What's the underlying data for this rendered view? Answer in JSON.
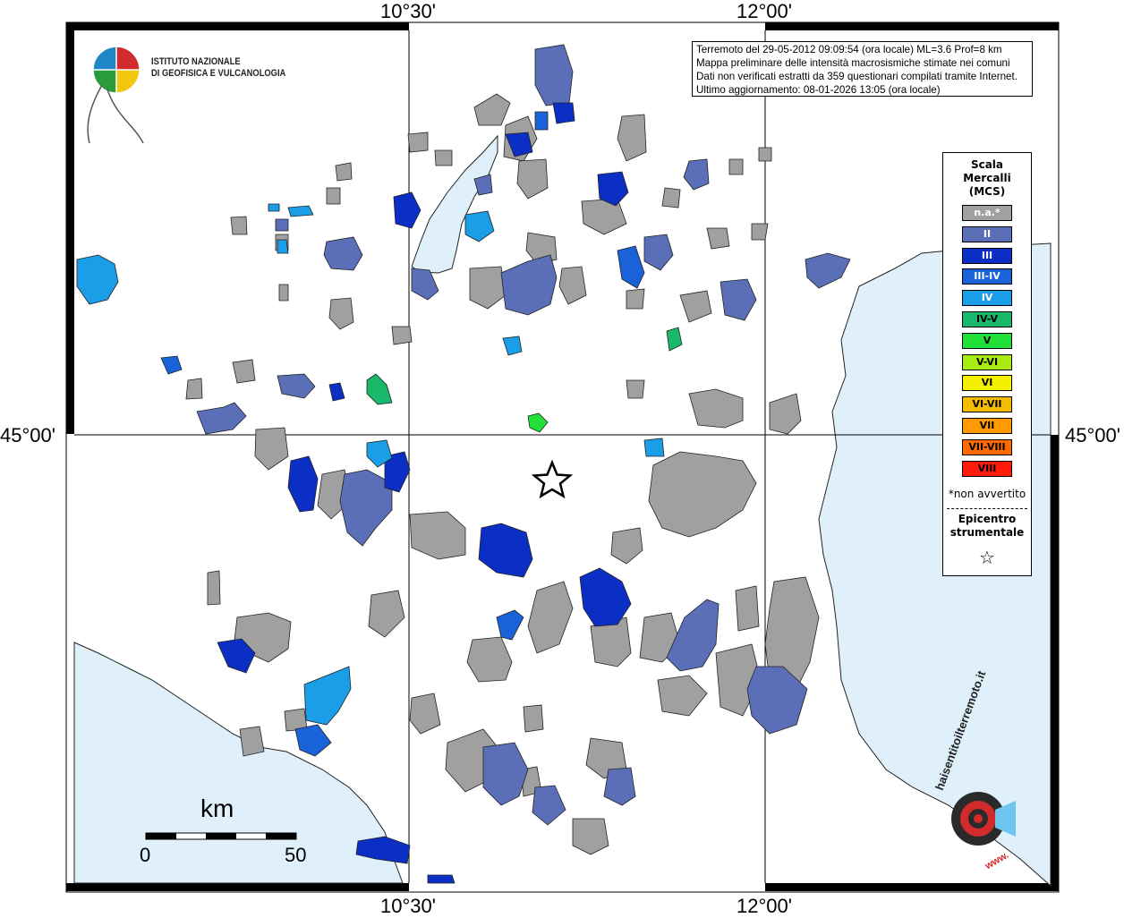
{
  "grid_labels": {
    "top_left": "10°30'",
    "top_right": "12°00'",
    "bottom_left": "10°30'",
    "bottom_right": "12°00'",
    "left_lat": "45°00'",
    "right_lat": "45°00'"
  },
  "institute_logo": {
    "line1": "ISTITUTO NAZIONALE",
    "line2": "DI GEOFISICA E VULCANOLOGIA"
  },
  "info_box": {
    "line1": "Terremoto del 29-05-2012 09:09:54 (ora locale) ML=3.6 Prof=8 km",
    "line2": "Mappa preliminare delle intensità macrosismiche stimate nei comuni",
    "line3": "Dati non verificati estratti da 359 questionari compilati tramite Internet.",
    "line4": "Ultimo aggiornamento: 08-01-2026 13:05 (ora locale)"
  },
  "legend": {
    "title_line1": "Scala",
    "title_line2": "Mercalli",
    "title_line3": "(MCS)",
    "items": [
      {
        "label": "n.a.*",
        "color": "#a0a0a0",
        "text_color": "#ffffff"
      },
      {
        "label": "II",
        "color": "#5b6fb8",
        "text_color": "#ffffff"
      },
      {
        "label": "III",
        "color": "#0b2fc4",
        "text_color": "#ffffff"
      },
      {
        "label": "III-IV",
        "color": "#1a62d8",
        "text_color": "#ffffff"
      },
      {
        "label": "IV",
        "color": "#1a9ee8",
        "text_color": "#ffffff"
      },
      {
        "label": "IV-V",
        "color": "#19b86a",
        "text_color": "#000000"
      },
      {
        "label": "V",
        "color": "#22e03a",
        "text_color": "#000000"
      },
      {
        "label": "V-VI",
        "color": "#a8ec14",
        "text_color": "#000000"
      },
      {
        "label": "VI",
        "color": "#f4f000",
        "text_color": "#000000"
      },
      {
        "label": "VI-VII",
        "color": "#f4bc00",
        "text_color": "#000000"
      },
      {
        "label": "VII",
        "color": "#ff9a00",
        "text_color": "#000000"
      },
      {
        "label": "VII-VIII",
        "color": "#ff6a00",
        "text_color": "#000000"
      },
      {
        "label": "VIII",
        "color": "#ff1a0a",
        "text_color": "#000000"
      }
    ],
    "note": "*non avvertito",
    "epicenter_line1": "Epicentro",
    "epicenter_line2": "strumentale",
    "epicenter_symbol": "☆"
  },
  "scale_bar": {
    "unit": "km",
    "start_label": "0",
    "end_label": "50"
  },
  "site_logo": {
    "text": "haisentitoilterremoto.it",
    "prefix": "www."
  },
  "colors": {
    "sea": "#dff0fb",
    "na": "#a0a0a0",
    "II": "#5b6fb8",
    "III": "#0b2fc4",
    "IV": "#1a9ee8",
    "IV-V": "#19b86a",
    "V": "#22e03a"
  }
}
